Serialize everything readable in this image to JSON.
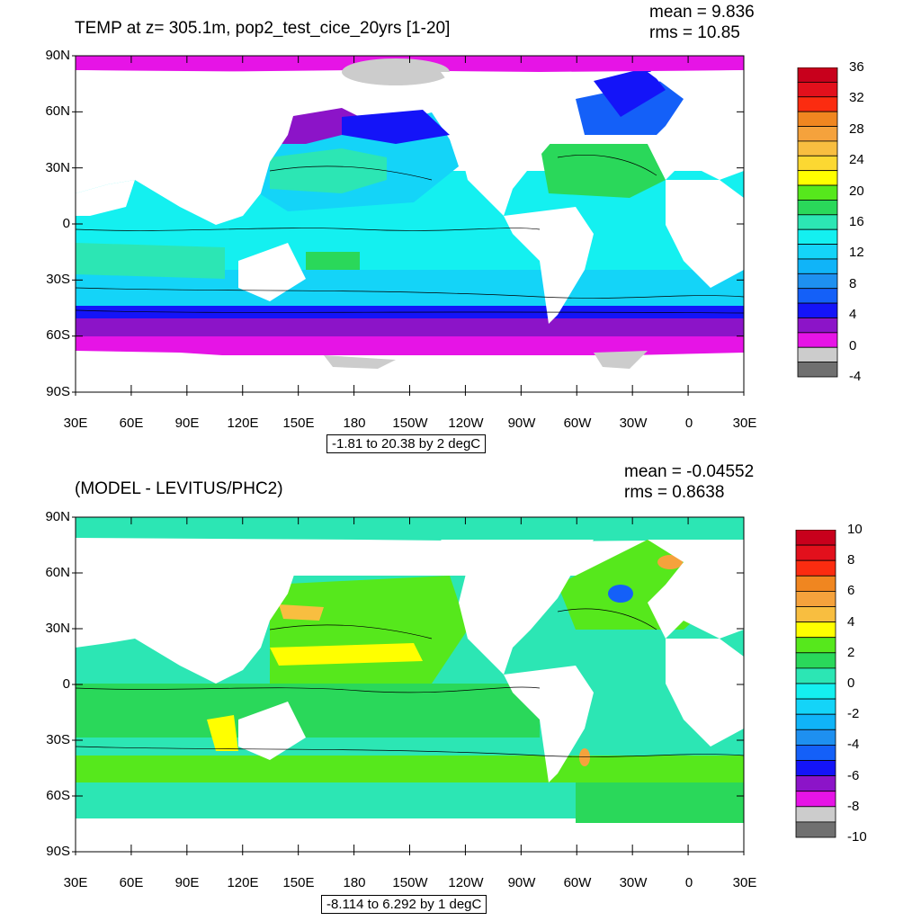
{
  "panels": [
    {
      "title": "TEMP at z= 305.1m, pop2_test_cice_20yrs [1-20]",
      "mean": "mean = 9.836",
      "rms": "rms = 10.85",
      "contour_info": "-1.81 to 20.38 by 2 degC",
      "lat_labels": [
        "90N",
        "60N",
        "30N",
        "0",
        "30S",
        "60S",
        "90S"
      ],
      "lon_labels": [
        "30E",
        "60E",
        "90E",
        "120E",
        "150E",
        "180",
        "150W",
        "120W",
        "90W",
        "60W",
        "30W",
        "0",
        "30E"
      ],
      "colorbar_labels": [
        "36",
        "32",
        "28",
        "24",
        "20",
        "16",
        "12",
        "8",
        "4",
        "0",
        "-4"
      ],
      "colorbar_colors": [
        "#c8001c",
        "#e2101c",
        "#fb2c10",
        "#f08620",
        "#f5a23c",
        "#f8be40",
        "#fcd832",
        "#ffff00",
        "#56e81c",
        "#2ad85a",
        "#2ce6b4",
        "#14f0f0",
        "#14d4f8",
        "#10b4f8",
        "#1e90f0",
        "#1460f8",
        "#1414f8",
        "#8c14c8",
        "#e614e6",
        "#cccccc",
        "#707070"
      ]
    },
    {
      "title": "(MODEL - LEVITUS/PHC2)",
      "mean": "mean = -0.04552",
      "rms": "rms = 0.8638",
      "contour_info": "-8.114 to 6.292 by 1 degC",
      "lat_labels": [
        "90N",
        "60N",
        "30N",
        "0",
        "30S",
        "60S",
        "90S"
      ],
      "lon_labels": [
        "30E",
        "60E",
        "90E",
        "120E",
        "150E",
        "180",
        "150W",
        "120W",
        "90W",
        "60W",
        "30W",
        "0",
        "30E"
      ],
      "colorbar_labels": [
        "10",
        "8",
        "6",
        "4",
        "2",
        "0",
        "-2",
        "-4",
        "-6",
        "-8",
        "-10"
      ],
      "colorbar_colors": [
        "#c8001c",
        "#e2101c",
        "#fb2c10",
        "#f08620",
        "#f5a23c",
        "#f8be40",
        "#ffff00",
        "#56e81c",
        "#2ad85a",
        "#2ce6b4",
        "#14f0f0",
        "#14d4f8",
        "#10b4f8",
        "#1e90f0",
        "#1460f8",
        "#1414f8",
        "#8c14c8",
        "#e614e6",
        "#cccccc",
        "#707070"
      ]
    }
  ],
  "colors": {
    "land": "#ffffff",
    "frame": "#000000"
  }
}
